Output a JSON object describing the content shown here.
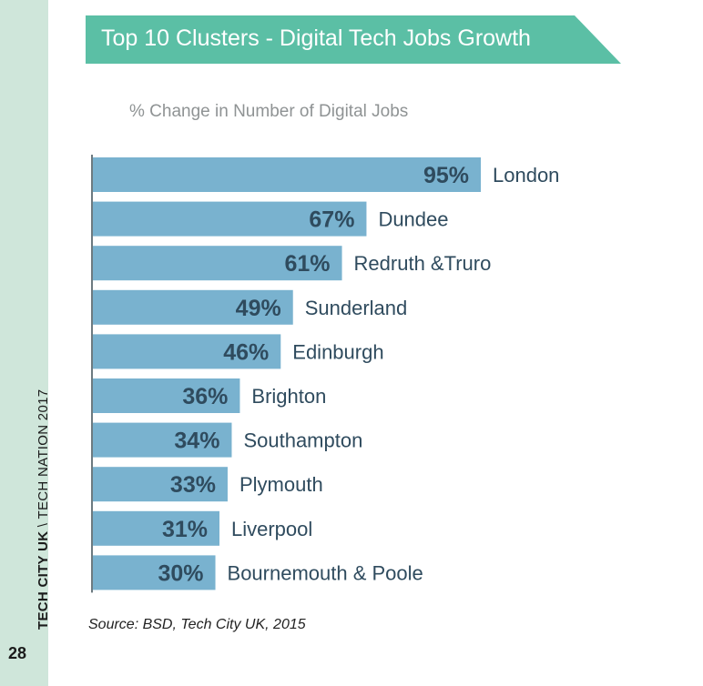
{
  "sidebar": {
    "publisher": "TECH CITY UK",
    "separator": " \\ ",
    "publication": "TECH NATION 2017",
    "page_number": "28"
  },
  "title": "Top 10 Clusters - Digital Tech Jobs Growth",
  "subtitle": "% Change in Number of Digital Jobs",
  "source": "Source: BSD, Tech City UK, 2015",
  "colors": {
    "bar": "#79b2cf",
    "label": "#2f4b5e",
    "banner": "#5bbfa5",
    "sidebar": "#cfe6da"
  },
  "chart_data": {
    "type": "bar",
    "orientation": "horizontal",
    "title": "Top 10 Clusters - Digital Tech Jobs Growth",
    "ylabel": "% Change in Number of Digital Jobs",
    "categories": [
      "London",
      "Dundee",
      "Redruth &Truro",
      "Sunderland",
      "Edinburgh",
      "Brighton",
      "Southampton",
      "Plymouth",
      "Liverpool",
      "Bournemouth & Poole"
    ],
    "values": [
      95,
      67,
      61,
      49,
      46,
      36,
      34,
      33,
      31,
      30
    ],
    "value_labels": [
      "95%",
      "67%",
      "61%",
      "49%",
      "46%",
      "36%",
      "34%",
      "33%",
      "31%",
      "30%"
    ],
    "unit": "%",
    "xlim": [
      0,
      95
    ]
  }
}
